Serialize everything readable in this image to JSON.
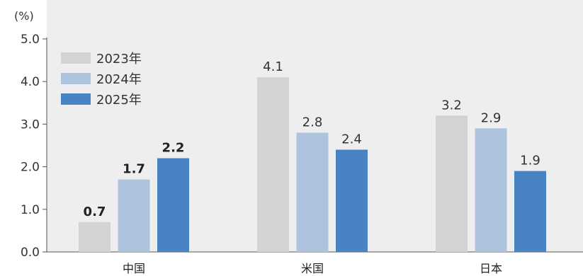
{
  "chart_data": {
    "type": "bar",
    "unit_label": "(%)",
    "categories": [
      "中国",
      "米国",
      "日本"
    ],
    "series": [
      {
        "name": "2023年",
        "values": [
          0.7,
          4.1,
          3.2
        ],
        "color": "#d2d3d5"
      },
      {
        "name": "2024年",
        "values": [
          1.7,
          2.8,
          2.9
        ],
        "color": "#aec3dd"
      },
      {
        "name": "2025年",
        "values": [
          2.2,
          2.4,
          1.9
        ],
        "color": "#4a83c4"
      }
    ],
    "value_labels": [
      [
        "0.7",
        "4.1",
        "3.2"
      ],
      [
        "1.7",
        "2.8",
        "2.9"
      ],
      [
        "2.2",
        "2.4",
        "1.9"
      ]
    ],
    "bold_value_labels_category": "中国",
    "yticks": [
      "0.0",
      "1.0",
      "2.0",
      "3.0",
      "4.0",
      "5.0"
    ],
    "ylim": [
      0,
      5
    ],
    "legend_position": "top-left",
    "plot_background": "#eeeeef",
    "grid": false
  }
}
